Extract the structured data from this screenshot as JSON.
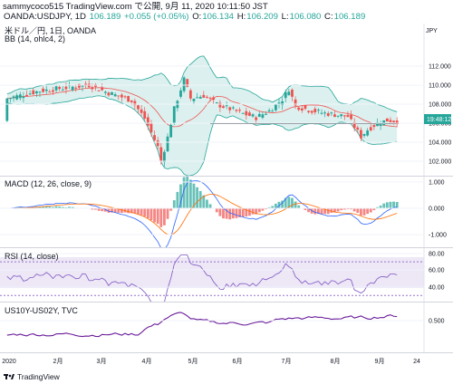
{
  "header": {
    "title": "sammycoco515 TradingView.com で公開, 9月 11, 2020 10:11:50 JST",
    "symbol": "OANDA:USDJPY, 1D",
    "price": "106.189",
    "change": "+0.055 (+0.05%)",
    "open_label": "O:",
    "open": "106.134",
    "high_label": "H:",
    "high": "106.209",
    "low_label": "L:",
    "low": "106.080",
    "close_label": "C:",
    "close": "106.189",
    "currency": "JPY"
  },
  "main_pane": {
    "title": "米ドル／円, 1日, OANDA",
    "indicator": "BB (14, ohlc4, 2)",
    "y_ticks": [
      "112.000",
      "110.000",
      "108.000",
      "106.000",
      "104.000",
      "102.000"
    ],
    "price_badge": "19:48:12"
  },
  "macd_pane": {
    "label": "MACD (12, 26, close, 9)",
    "y_ticks": [
      "1.000",
      "0.000",
      "-1.000"
    ]
  },
  "rsi_pane": {
    "label": "RSI (14, close)",
    "y_ticks": [
      "80.00",
      "60.00",
      "40.00"
    ]
  },
  "spread_pane": {
    "label": "US10Y-US02Y, TVC",
    "y_ticks": [
      "0.500"
    ]
  },
  "x_axis": {
    "ticks": [
      "2020",
      "2月",
      "3月",
      "4月",
      "5月",
      "6月",
      "7月",
      "8月",
      "9月",
      "24"
    ]
  },
  "footer": {
    "brand": "TradingView"
  },
  "colors": {
    "up": "#26a69a",
    "down": "#ef5350",
    "bb": "#26a69a",
    "macd": "#2962ff",
    "signal": "#ff6d00",
    "rsi": "#7e57c2",
    "spread": "#6a1b9a"
  }
}
